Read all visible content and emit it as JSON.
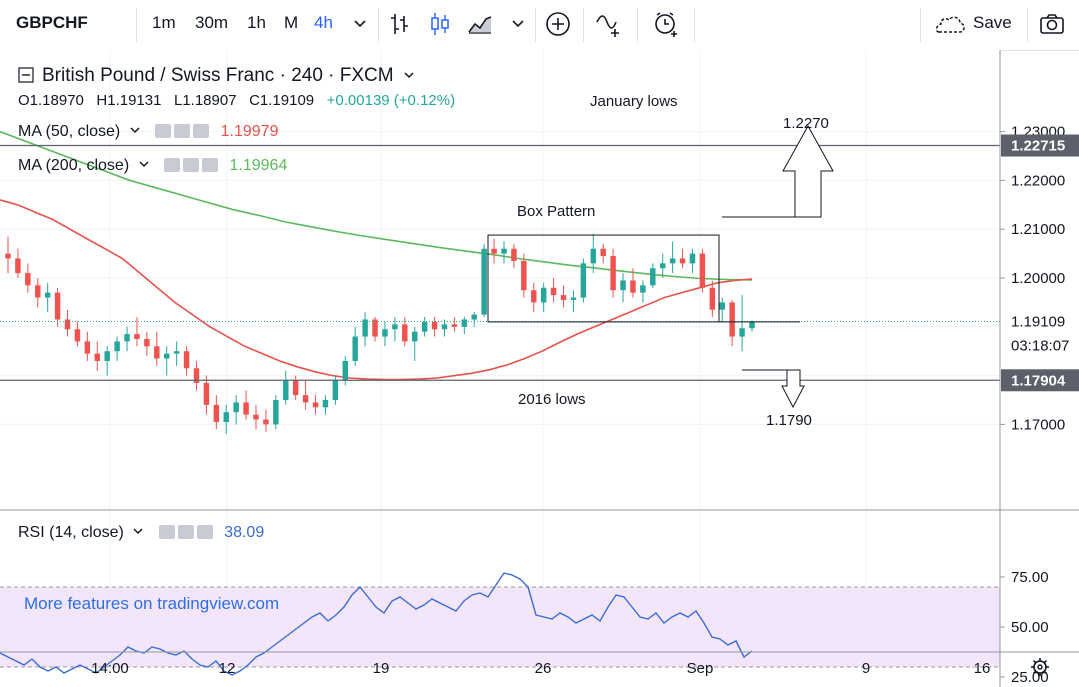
{
  "toolbar": {
    "symbol": "GBPCHF",
    "intervals": [
      "1m",
      "30m",
      "1h",
      "M",
      "4h"
    ],
    "active_interval": "4h",
    "save_label": "Save",
    "icons": [
      "bar-style-icon",
      "candle-style-icon",
      "area-style-icon",
      "chevron-down-icon",
      "add-compare-icon",
      "indicators-icon",
      "alert-icon",
      "cloud-save-icon",
      "camera-icon"
    ]
  },
  "legend": {
    "title": "British Pound / Swiss Franc · 240 · FXCM",
    "ohlc": {
      "o": "O1.18970",
      "h": "H1.19131",
      "l": "L1.18907",
      "c": "C1.19109",
      "chg": "+0.00139 (+0.12%)"
    },
    "ma50": {
      "label": "MA (50, close)",
      "value": "1.19979",
      "color": "#e5534b"
    },
    "ma200": {
      "label": "MA (200, close)",
      "value": "1.19964",
      "color": "#5cb85c"
    },
    "rsi": {
      "label": "RSI (14, close)",
      "value": "38.09",
      "color": "#3b6bd6"
    }
  },
  "annotations": {
    "january_lows": "January lows",
    "box_pattern": "Box Pattern",
    "lows_2016": "2016 lows",
    "target_up": "1.2270",
    "target_down": "1.1790",
    "watermark": "More features on tradingview.com"
  },
  "price_axis": {
    "ticks": [
      "1.23000",
      "1.22000",
      "1.21000",
      "1.20000",
      "1.17000"
    ],
    "tags": {
      "january": "1.22715",
      "current": "1.19109",
      "countdown": "03:18:07",
      "lows": "1.17904"
    }
  },
  "rsi_axis": {
    "ticks": [
      "75.00",
      "50.00",
      "25.00"
    ]
  },
  "time_axis": {
    "ticks": [
      "14:00",
      "12",
      "19",
      "26",
      "Sep",
      "9",
      "16"
    ]
  },
  "chart_data": {
    "type": "candlestick",
    "symbol": "GBPCHF",
    "timeframe": "240",
    "x_range": [
      "Aug 7",
      "Sep 5"
    ],
    "ylim": [
      1.164,
      1.234
    ],
    "levels": {
      "january_lows": 1.22715,
      "box_top": 1.2088,
      "box_bottom": 1.191,
      "lows_2016": 1.17904,
      "current": 1.19109
    },
    "candles": [
      [
        1.205,
        1.2085,
        1.201,
        1.204
      ],
      [
        1.204,
        1.206,
        1.2,
        1.201
      ],
      [
        1.201,
        1.203,
        1.197,
        1.1985
      ],
      [
        1.1985,
        1.2,
        1.194,
        1.196
      ],
      [
        1.196,
        1.199,
        1.193,
        1.197
      ],
      [
        1.197,
        1.198,
        1.19,
        1.1915
      ],
      [
        1.1915,
        1.1935,
        1.188,
        1.1895
      ],
      [
        1.1895,
        1.191,
        1.186,
        1.187
      ],
      [
        1.187,
        1.189,
        1.183,
        1.1845
      ],
      [
        1.1845,
        1.187,
        1.181,
        1.183
      ],
      [
        1.183,
        1.186,
        1.18,
        1.185
      ],
      [
        1.185,
        1.188,
        1.183,
        1.187
      ],
      [
        1.187,
        1.19,
        1.185,
        1.1885
      ],
      [
        1.1885,
        1.192,
        1.186,
        1.1875
      ],
      [
        1.1875,
        1.189,
        1.184,
        1.186
      ],
      [
        1.186,
        1.189,
        1.182,
        1.1835
      ],
      [
        1.1835,
        1.186,
        1.18,
        1.1845
      ],
      [
        1.1845,
        1.187,
        1.182,
        1.185
      ],
      [
        1.185,
        1.186,
        1.18,
        1.1815
      ],
      [
        1.1815,
        1.183,
        1.177,
        1.1785
      ],
      [
        1.1785,
        1.18,
        1.172,
        1.174
      ],
      [
        1.174,
        1.176,
        1.169,
        1.1705
      ],
      [
        1.1705,
        1.174,
        1.168,
        1.1725
      ],
      [
        1.1725,
        1.176,
        1.17,
        1.1745
      ],
      [
        1.1745,
        1.177,
        1.171,
        1.172
      ],
      [
        1.172,
        1.174,
        1.169,
        1.171
      ],
      [
        1.171,
        1.173,
        1.1685,
        1.17
      ],
      [
        1.17,
        1.176,
        1.169,
        1.175
      ],
      [
        1.175,
        1.181,
        1.174,
        1.179
      ],
      [
        1.179,
        1.18,
        1.175,
        1.176
      ],
      [
        1.176,
        1.179,
        1.173,
        1.1745
      ],
      [
        1.1745,
        1.176,
        1.172,
        1.1735
      ],
      [
        1.1735,
        1.176,
        1.172,
        1.175
      ],
      [
        1.175,
        1.18,
        1.174,
        1.179
      ],
      [
        1.179,
        1.184,
        1.178,
        1.183
      ],
      [
        1.183,
        1.19,
        1.182,
        1.188
      ],
      [
        1.188,
        1.193,
        1.186,
        1.1915
      ],
      [
        1.1915,
        1.192,
        1.187,
        1.188
      ],
      [
        1.188,
        1.191,
        1.186,
        1.1895
      ],
      [
        1.1895,
        1.192,
        1.187,
        1.1905
      ],
      [
        1.1905,
        1.192,
        1.186,
        1.187
      ],
      [
        1.187,
        1.19,
        1.183,
        1.189
      ],
      [
        1.189,
        1.192,
        1.188,
        1.191
      ],
      [
        1.191,
        1.192,
        1.188,
        1.1895
      ],
      [
        1.1895,
        1.1915,
        1.188,
        1.1905
      ],
      [
        1.1905,
        1.192,
        1.189,
        1.19
      ],
      [
        1.19,
        1.192,
        1.1885,
        1.1915
      ],
      [
        1.1915,
        1.193,
        1.19,
        1.1925
      ],
      [
        1.1925,
        1.207,
        1.192,
        1.206
      ],
      [
        1.206,
        1.208,
        1.203,
        1.205
      ],
      [
        1.205,
        1.2075,
        1.203,
        1.206
      ],
      [
        1.206,
        1.207,
        1.202,
        1.2035
      ],
      [
        1.2035,
        1.205,
        1.196,
        1.1975
      ],
      [
        1.1975,
        1.199,
        1.193,
        1.195
      ],
      [
        1.195,
        1.199,
        1.193,
        1.198
      ],
      [
        1.198,
        1.2,
        1.195,
        1.1965
      ],
      [
        1.1965,
        1.1985,
        1.194,
        1.1955
      ],
      [
        1.1955,
        1.1975,
        1.193,
        1.196
      ],
      [
        1.196,
        1.204,
        1.195,
        1.203
      ],
      [
        1.203,
        1.209,
        1.201,
        1.206
      ],
      [
        1.206,
        1.207,
        1.203,
        1.2045
      ],
      [
        1.2045,
        1.206,
        1.196,
        1.1975
      ],
      [
        1.1975,
        1.201,
        1.195,
        1.1995
      ],
      [
        1.1995,
        1.202,
        1.196,
        1.197
      ],
      [
        1.197,
        1.1995,
        1.195,
        1.1985
      ],
      [
        1.1985,
        1.203,
        1.198,
        1.202
      ],
      [
        1.202,
        1.205,
        1.2,
        1.203
      ],
      [
        1.203,
        1.2075,
        1.201,
        1.204
      ],
      [
        1.204,
        1.206,
        1.202,
        1.203
      ],
      [
        1.203,
        1.206,
        1.201,
        1.205
      ],
      [
        1.205,
        1.206,
        1.197,
        1.198
      ],
      [
        1.198,
        1.1995,
        1.192,
        1.1935
      ],
      [
        1.1935,
        1.196,
        1.191,
        1.195
      ],
      [
        1.195,
        1.1955,
        1.186,
        1.188
      ],
      [
        1.188,
        1.1965,
        1.185,
        1.1897
      ],
      [
        1.1897,
        1.1913,
        1.189,
        1.1911
      ]
    ],
    "ma50": [
      1.216,
      1.215,
      1.2135,
      1.212,
      1.21,
      1.208,
      1.206,
      1.204,
      1.201,
      1.198,
      1.195,
      1.1925,
      1.19,
      1.188,
      1.186,
      1.1845,
      1.183,
      1.1818,
      1.1808,
      1.18,
      1.1795,
      1.1793,
      1.1792,
      1.1792,
      1.1793,
      1.1795,
      1.18,
      1.1805,
      1.1812,
      1.1822,
      1.1835,
      1.185,
      1.1868,
      1.1885,
      1.19,
      1.1915,
      1.193,
      1.1945,
      1.196,
      1.197,
      1.198,
      1.199,
      1.1995,
      1.1998
    ],
    "ma200": [
      1.23,
      1.228,
      1.226,
      1.224,
      1.222,
      1.22,
      1.2185,
      1.217,
      1.2155,
      1.214,
      1.2128,
      1.2115,
      1.2105,
      1.2095,
      1.2086,
      1.2078,
      1.207,
      1.2062,
      1.2055,
      1.2048,
      1.204,
      1.2033,
      1.2026,
      1.202,
      1.2014,
      1.2008,
      1.2003,
      1.1999,
      1.1997,
      1.1996
    ],
    "rsi": {
      "ylim": [
        15,
        82
      ],
      "overbought": 70,
      "oversold": 30,
      "values": [
        37,
        35,
        33,
        31,
        34,
        30,
        28,
        30,
        27,
        29,
        31,
        29,
        27,
        30,
        33,
        36,
        40,
        38,
        37,
        40,
        39,
        37,
        36,
        38,
        34,
        31,
        30,
        33,
        28,
        26,
        28,
        31,
        35,
        37,
        40,
        43,
        46,
        49,
        52,
        55,
        57,
        53,
        56,
        60,
        66,
        70,
        65,
        60,
        57,
        63,
        65,
        62,
        59,
        61,
        64,
        62,
        60,
        58,
        63,
        66,
        67,
        65,
        71,
        77,
        76,
        74,
        70,
        56,
        55,
        54,
        57,
        55,
        52,
        54,
        56,
        53,
        60,
        66,
        65,
        60,
        55,
        54,
        57,
        52,
        55,
        57,
        55,
        58,
        52,
        45,
        44,
        41,
        43,
        35,
        38
      ]
    }
  }
}
